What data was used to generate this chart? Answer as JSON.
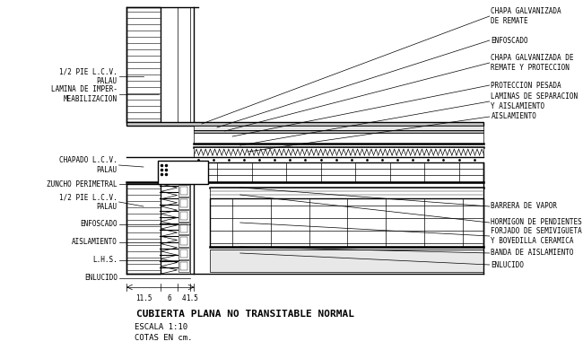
{
  "title": "CUBIERTA PLANA NO TRANSITABLE NORMAL",
  "subtitle1": "ESCALA 1:10",
  "subtitle2": "COTAS EN cm.",
  "bg_color": "#ffffff",
  "line_color": "#000000",
  "dim_labels": [
    "11.5",
    "6",
    "4",
    "1.5"
  ],
  "labels_right_top": [
    "CHAPA GALVANIZADA\nDE REMATE",
    "ENFOSCADO",
    "CHAPA GALVANIZADA DE\nREMATE Y PROTECCION",
    "PROTECCION PESADA",
    "LAMINAS DE SEPARACION\nY AISLAMIENTO",
    "AISLAMIENTO"
  ],
  "labels_right_bot": [
    "BARRERA DE VAPOR",
    "HORMIGON DE PENDIENTES",
    "FORJADO DE SEMIVIGUETA\nY BOVEDILLA CERAMICA",
    "BANDA DE AISLAMIENTO",
    "ENLUCIDO"
  ],
  "labels_left_top": [
    "1/2 PIE L.C.V.\nPALAU",
    "LAMINA DE IMPER-\nMEABILIZACION"
  ],
  "labels_left_bot": [
    "CHAPADO L.C.V.\nPALAU",
    "ZUNCHO PERIMETRAL",
    "1/2 PIE L.C.V.\nPALAU",
    "ENFOSCADO",
    "AISLAMIENTO",
    "L.H.S.",
    "ENLUCIDO"
  ]
}
